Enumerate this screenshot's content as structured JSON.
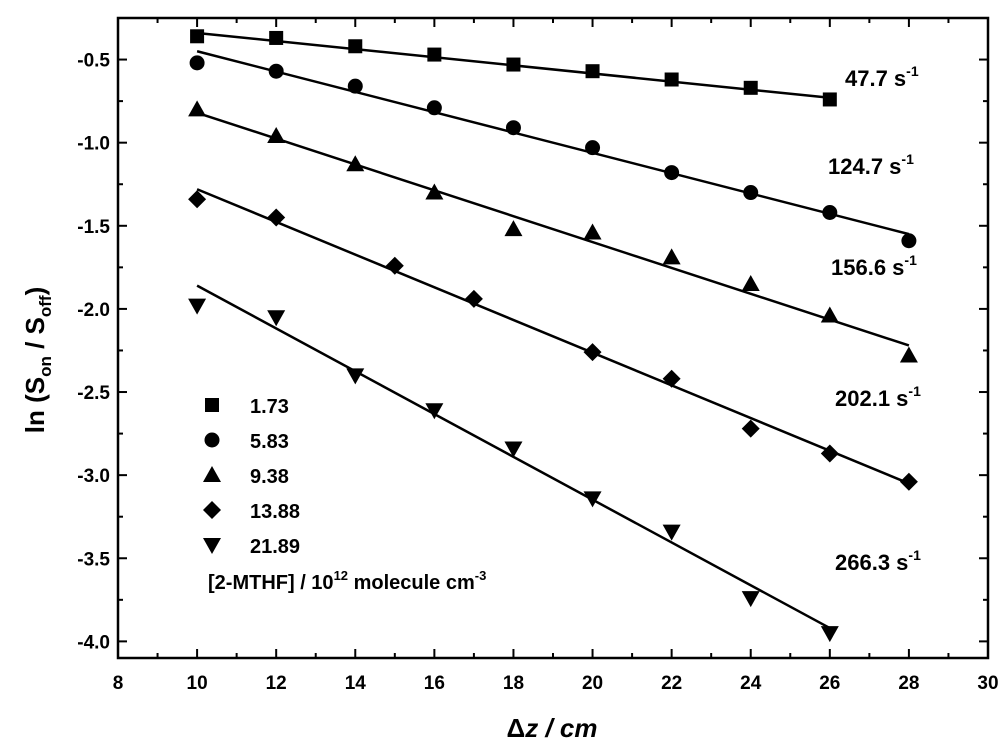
{
  "chart_data": {
    "type": "scatter",
    "xlabel": "Δz / cm",
    "ylabel": "ln (Son / Soff)",
    "xlim": [
      8,
      30
    ],
    "ylim": [
      -4.1,
      -0.25
    ],
    "x_ticks": [
      8,
      10,
      12,
      14,
      16,
      18,
      20,
      22,
      24,
      26,
      28,
      30
    ],
    "y_ticks": [
      -0.5,
      -1.0,
      -1.5,
      -2.0,
      -2.5,
      -3.0,
      -3.5,
      -4.0
    ],
    "grid": false,
    "legend_position": "bottom-left",
    "legend_title": "[2-MTHF] / 10^12 molecule cm^-3",
    "series": [
      {
        "name": "1.73",
        "marker": "square",
        "x": [
          10,
          12,
          14,
          16,
          18,
          20,
          22,
          24,
          26
        ],
        "y": [
          -0.36,
          -0.37,
          -0.42,
          -0.47,
          -0.53,
          -0.57,
          -0.62,
          -0.67,
          -0.74
        ],
        "fit": {
          "x": [
            10,
            26
          ],
          "y": [
            -0.34,
            -0.73
          ]
        },
        "rate_label": "47.7 s-1"
      },
      {
        "name": "5.83",
        "marker": "circle",
        "x": [
          10,
          12,
          14,
          16,
          18,
          20,
          22,
          24,
          26,
          28
        ],
        "y": [
          -0.52,
          -0.57,
          -0.66,
          -0.79,
          -0.91,
          -1.03,
          -1.18,
          -1.3,
          -1.42,
          -1.59
        ],
        "fit": {
          "x": [
            10,
            28
          ],
          "y": [
            -0.45,
            -1.55
          ]
        },
        "rate_label": "124.7 s-1"
      },
      {
        "name": "9.38",
        "marker": "triangle-up",
        "x": [
          10,
          12,
          14,
          16,
          18,
          20,
          22,
          24,
          26,
          28
        ],
        "y": [
          -0.8,
          -0.96,
          -1.13,
          -1.3,
          -1.52,
          -1.54,
          -1.69,
          -1.85,
          -2.04,
          -2.28
        ],
        "fit": {
          "x": [
            10,
            28
          ],
          "y": [
            -0.82,
            -2.22
          ]
        },
        "rate_label": "156.6 s-1"
      },
      {
        "name": "13.88",
        "marker": "diamond",
        "x": [
          10,
          12,
          15,
          17,
          20,
          22,
          24,
          26,
          28
        ],
        "y": [
          -1.34,
          -1.45,
          -1.74,
          -1.94,
          -2.26,
          -2.42,
          -2.72,
          -2.87,
          -3.04
        ],
        "fit": {
          "x": [
            10,
            28
          ],
          "y": [
            -1.28,
            -3.05
          ]
        },
        "rate_label": "202.1 s-1"
      },
      {
        "name": "21.89",
        "marker": "triangle-down",
        "x": [
          10,
          12,
          14,
          16,
          18,
          20,
          22,
          24,
          26
        ],
        "y": [
          -1.98,
          -2.05,
          -2.4,
          -2.61,
          -2.84,
          -3.14,
          -3.34,
          -3.74,
          -3.95
        ],
        "fit": {
          "x": [
            10,
            26
          ],
          "y": [
            -1.86,
            -3.92
          ]
        },
        "rate_label": "266.3 s-1"
      }
    ]
  },
  "rate_labels": [
    {
      "text": "47.7 s",
      "sup": "-1"
    },
    {
      "text": "124.7 s",
      "sup": "-1"
    },
    {
      "text": "156.6 s",
      "sup": "-1"
    },
    {
      "text": "202.1 s",
      "sup": "-1"
    },
    {
      "text": "266.3 s",
      "sup": "-1"
    }
  ],
  "axis_text": {
    "x_delta": "Δ",
    "x_rest": "z / cm",
    "y_pre": "ln (S",
    "y_sub1": "on",
    "y_mid": " / S",
    "y_sub2": "off",
    "y_post": ")"
  },
  "legend_text": {
    "title_pre": "[2-MTHF] / 10",
    "title_sup": "12",
    "title_mid": " molecule cm",
    "title_sup2": "-3"
  }
}
